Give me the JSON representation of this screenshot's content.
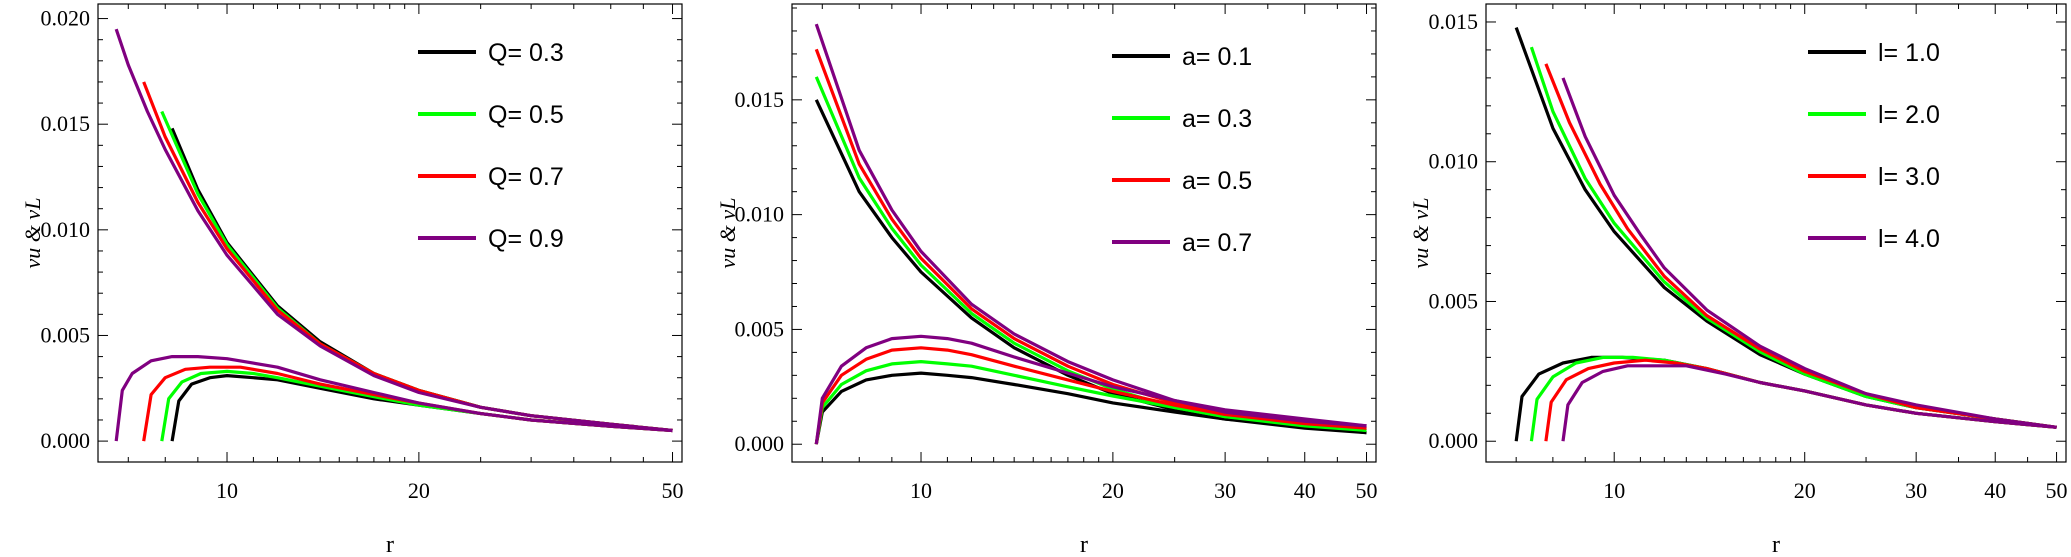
{
  "colors": {
    "c1": "#000000",
    "c2": "#00ff00",
    "c3": "#ff0000",
    "c4": "#800080"
  },
  "chart_data": [
    {
      "type": "line",
      "xlabel": "r",
      "ylabel": "ν_u & ν_L",
      "x_scale": "log",
      "xlim": [
        6.6,
        51
      ],
      "ylim": [
        -0.0008,
        0.0205
      ],
      "xticks": [
        10,
        20,
        50
      ],
      "yticks": [
        0.0,
        0.005,
        0.01,
        0.015,
        0.02
      ],
      "ytick_labels": [
        "0.000",
        "0.005",
        "0.010",
        "0.015",
        "0.020"
      ],
      "legend_position": "top-right",
      "series": [
        {
          "name": "Q= 0.3",
          "color": "#000000",
          "upper": {
            "x": [
              8.2,
              9,
              10,
              12,
              14,
              17,
              20,
              25,
              30,
              40,
              50
            ],
            "y": [
              0.0148,
              0.0119,
              0.0094,
              0.0064,
              0.0047,
              0.0032,
              0.0024,
              0.0016,
              0.0012,
              0.0008,
              0.0005
            ]
          },
          "lower": {
            "x": [
              8.2,
              8.4,
              8.8,
              9.4,
              10,
              11,
              12,
              14,
              17,
              20,
              25,
              30,
              40,
              50
            ],
            "y": [
              0.0,
              0.0019,
              0.0027,
              0.003,
              0.0031,
              0.003,
              0.0029,
              0.0025,
              0.002,
              0.0017,
              0.0013,
              0.001,
              0.0007,
              0.0005
            ]
          }
        },
        {
          "name": "Q= 0.5",
          "color": "#00ff00",
          "upper": {
            "x": [
              7.9,
              9,
              10,
              12,
              14,
              17,
              20,
              25,
              30,
              40,
              50
            ],
            "y": [
              0.0156,
              0.0117,
              0.0093,
              0.0063,
              0.0046,
              0.0032,
              0.0024,
              0.0016,
              0.0012,
              0.0008,
              0.0005
            ]
          },
          "lower": {
            "x": [
              7.9,
              8.1,
              8.5,
              9.1,
              10,
              11,
              12,
              14,
              17,
              20,
              25,
              30,
              40,
              50
            ],
            "y": [
              0.0,
              0.002,
              0.0028,
              0.0032,
              0.0033,
              0.0032,
              0.003,
              0.0026,
              0.0021,
              0.0017,
              0.0013,
              0.001,
              0.0007,
              0.0005
            ]
          }
        },
        {
          "name": "Q= 0.7",
          "color": "#ff0000",
          "upper": {
            "x": [
              7.4,
              8,
              9,
              10,
              12,
              14,
              17,
              20,
              25,
              30,
              40,
              50
            ],
            "y": [
              0.017,
              0.0144,
              0.0113,
              0.0091,
              0.0062,
              0.0046,
              0.0032,
              0.0024,
              0.0016,
              0.0012,
              0.0008,
              0.0005
            ]
          },
          "lower": {
            "x": [
              7.4,
              7.6,
              8,
              8.6,
              9.4,
              10.5,
              12,
              14,
              17,
              20,
              25,
              30,
              40,
              50
            ],
            "y": [
              0.0,
              0.0022,
              0.003,
              0.0034,
              0.0035,
              0.0035,
              0.0032,
              0.0027,
              0.0022,
              0.0018,
              0.0013,
              0.001,
              0.0007,
              0.0005
            ]
          }
        },
        {
          "name": "Q= 0.9",
          "color": "#800080",
          "upper": {
            "x": [
              6.7,
              7,
              7.5,
              8,
              9,
              10,
              12,
              14,
              17,
              20,
              25,
              30,
              40,
              50
            ],
            "y": [
              0.0195,
              0.0178,
              0.0156,
              0.0138,
              0.0109,
              0.0088,
              0.006,
              0.0045,
              0.0031,
              0.0023,
              0.0016,
              0.0012,
              0.0008,
              0.0005
            ]
          },
          "lower": {
            "x": [
              6.7,
              6.85,
              7.1,
              7.6,
              8.2,
              9,
              10,
              12,
              14,
              17,
              20,
              25,
              30,
              40,
              50
            ],
            "y": [
              0.0,
              0.0024,
              0.0032,
              0.0038,
              0.004,
              0.004,
              0.0039,
              0.0035,
              0.0029,
              0.0023,
              0.0018,
              0.0013,
              0.001,
              0.0007,
              0.0005
            ]
          }
        }
      ]
    },
    {
      "type": "line",
      "xlabel": "r",
      "ylabel": "ν_u & ν_L",
      "x_scale": "log",
      "xlim": [
        6.6,
        51
      ],
      "ylim": [
        -0.0006,
        0.019
      ],
      "xticks": [
        10,
        20,
        30,
        40,
        50
      ],
      "yticks": [
        0.0,
        0.005,
        0.01,
        0.015
      ],
      "ytick_labels": [
        "0.000",
        "0.005",
        "0.010",
        "0.015"
      ],
      "legend_position": "top-right",
      "series": [
        {
          "name": "a= 0.1",
          "color": "#000000",
          "upper": {
            "x": [
              6.85,
              8,
              9,
              10,
              12,
              14,
              17,
              20,
              25,
              30,
              40,
              50
            ],
            "y": [
              0.015,
              0.011,
              0.009,
              0.0075,
              0.0055,
              0.0042,
              0.003,
              0.0022,
              0.0015,
              0.0011,
              0.0007,
              0.0005
            ]
          },
          "lower": {
            "x": [
              6.85,
              7,
              7.5,
              8.2,
              9,
              10,
              11,
              12,
              14,
              17,
              20,
              25,
              30,
              40,
              50
            ],
            "y": [
              0.0,
              0.0014,
              0.0023,
              0.0028,
              0.003,
              0.0031,
              0.003,
              0.0029,
              0.0026,
              0.0022,
              0.0018,
              0.0014,
              0.0011,
              0.0008,
              0.0005
            ]
          }
        },
        {
          "name": "a= 0.3",
          "color": "#00ff00",
          "upper": {
            "x": [
              6.85,
              8,
              9,
              10,
              12,
              14,
              17,
              20,
              25,
              30,
              40,
              50
            ],
            "y": [
              0.016,
              0.0116,
              0.0094,
              0.0078,
              0.0057,
              0.0044,
              0.0032,
              0.0024,
              0.0016,
              0.0012,
              0.0008,
              0.0006
            ]
          },
          "lower": {
            "x": [
              6.85,
              7,
              7.5,
              8.2,
              9,
              10,
              11,
              12,
              14,
              17,
              20,
              25,
              30,
              40,
              50
            ],
            "y": [
              0.0,
              0.0016,
              0.0026,
              0.0032,
              0.0035,
              0.0036,
              0.0035,
              0.0034,
              0.003,
              0.0025,
              0.0021,
              0.0016,
              0.0012,
              0.0009,
              0.0006
            ]
          }
        },
        {
          "name": "a= 0.5",
          "color": "#ff0000",
          "upper": {
            "x": [
              6.85,
              8,
              9,
              10,
              12,
              14,
              17,
              20,
              25,
              30,
              40,
              50
            ],
            "y": [
              0.0172,
              0.0122,
              0.0098,
              0.0081,
              0.0059,
              0.0046,
              0.0034,
              0.0026,
              0.0018,
              0.0013,
              0.0009,
              0.0007
            ]
          },
          "lower": {
            "x": [
              6.85,
              7,
              7.5,
              8.2,
              9,
              10,
              11,
              12,
              14,
              17,
              20,
              25,
              30,
              40,
              50
            ],
            "y": [
              0.0,
              0.0018,
              0.003,
              0.0037,
              0.0041,
              0.0042,
              0.0041,
              0.0039,
              0.0034,
              0.0028,
              0.0023,
              0.0017,
              0.0013,
              0.001,
              0.0007
            ]
          }
        },
        {
          "name": "a= 0.7",
          "color": "#800080",
          "upper": {
            "x": [
              6.85,
              8,
              9,
              10,
              12,
              14,
              17,
              20,
              25,
              30,
              40,
              50
            ],
            "y": [
              0.0183,
              0.0128,
              0.0102,
              0.0084,
              0.0061,
              0.0048,
              0.0036,
              0.0028,
              0.0019,
              0.0014,
              0.001,
              0.0008
            ]
          },
          "lower": {
            "x": [
              6.85,
              7,
              7.5,
              8.2,
              9,
              10,
              11,
              12,
              14,
              17,
              20,
              25,
              30,
              40,
              50
            ],
            "y": [
              0.0,
              0.002,
              0.0034,
              0.0042,
              0.0046,
              0.0047,
              0.0046,
              0.0044,
              0.0038,
              0.0031,
              0.0025,
              0.0019,
              0.0015,
              0.0011,
              0.0008
            ]
          }
        }
      ]
    },
    {
      "type": "line",
      "xlabel": "r",
      "ylabel": "ν_u & ν_L",
      "x_scale": "log",
      "xlim": [
        6.6,
        51
      ],
      "ylim": [
        -0.0006,
        0.0155
      ],
      "xticks": [
        10,
        20,
        30,
        40,
        50
      ],
      "yticks": [
        0.0,
        0.005,
        0.01,
        0.015
      ],
      "ytick_labels": [
        "0.000",
        "0.005",
        "0.010",
        "0.015"
      ],
      "legend_position": "top-right",
      "series": [
        {
          "name": "l= 1.0",
          "color": "#000000",
          "upper": {
            "x": [
              7.0,
              8,
              9,
              10,
              12,
              14,
              17,
              20,
              25,
              30,
              40,
              50
            ],
            "y": [
              0.0148,
              0.0112,
              0.009,
              0.0075,
              0.0055,
              0.0043,
              0.0031,
              0.0024,
              0.0016,
              0.0012,
              0.0008,
              0.0005
            ]
          },
          "lower": {
            "x": [
              7.0,
              7.15,
              7.6,
              8.3,
              9.2,
              10.3,
              12,
              14,
              17,
              20,
              25,
              30,
              40,
              50
            ],
            "y": [
              0.0,
              0.0016,
              0.0024,
              0.0028,
              0.003,
              0.003,
              0.0029,
              0.0026,
              0.0021,
              0.0018,
              0.0013,
              0.001,
              0.0007,
              0.0005
            ]
          }
        },
        {
          "name": "l= 2.0",
          "color": "#00ff00",
          "upper": {
            "x": [
              7.4,
              8,
              9,
              10,
              12,
              14,
              17,
              20,
              25,
              30,
              40,
              50
            ],
            "y": [
              0.0141,
              0.0118,
              0.0094,
              0.0078,
              0.0057,
              0.0044,
              0.0032,
              0.0024,
              0.0016,
              0.0012,
              0.0008,
              0.0005
            ]
          },
          "lower": {
            "x": [
              7.4,
              7.55,
              8,
              8.7,
              9.6,
              10.7,
              12,
              14,
              17,
              20,
              25,
              30,
              40,
              50
            ],
            "y": [
              0.0,
              0.0015,
              0.0023,
              0.0028,
              0.003,
              0.003,
              0.0029,
              0.0026,
              0.0021,
              0.0018,
              0.0013,
              0.001,
              0.0007,
              0.0005
            ]
          }
        },
        {
          "name": "l= 3.0",
          "color": "#ff0000",
          "upper": {
            "x": [
              7.8,
              8.5,
              9.5,
              10.5,
              12,
              14,
              17,
              20,
              25,
              30,
              40,
              50
            ],
            "y": [
              0.0135,
              0.0114,
              0.0092,
              0.0076,
              0.0059,
              0.0045,
              0.0033,
              0.0025,
              0.0017,
              0.0012,
              0.0008,
              0.0005
            ]
          },
          "lower": {
            "x": [
              7.8,
              7.95,
              8.4,
              9.1,
              10,
              11.2,
              12.5,
              14,
              17,
              20,
              25,
              30,
              40,
              50
            ],
            "y": [
              0.0,
              0.0014,
              0.0022,
              0.0026,
              0.0028,
              0.0029,
              0.0028,
              0.0026,
              0.0021,
              0.0018,
              0.0013,
              0.001,
              0.0007,
              0.0005
            ]
          }
        },
        {
          "name": "l= 4.0",
          "color": "#800080",
          "upper": {
            "x": [
              8.3,
              9,
              10,
              11,
              12,
              14,
              17,
              20,
              25,
              30,
              40,
              50
            ],
            "y": [
              0.013,
              0.0109,
              0.0088,
              0.0074,
              0.0062,
              0.0047,
              0.0034,
              0.0026,
              0.0017,
              0.0013,
              0.0008,
              0.0005
            ]
          },
          "lower": {
            "x": [
              8.3,
              8.45,
              8.9,
              9.6,
              10.5,
              11.7,
              13,
              15,
              17,
              20,
              25,
              30,
              40,
              50
            ],
            "y": [
              0.0,
              0.0013,
              0.0021,
              0.0025,
              0.0027,
              0.0027,
              0.0027,
              0.0024,
              0.0021,
              0.0018,
              0.0013,
              0.001,
              0.0007,
              0.0005
            ]
          }
        }
      ]
    }
  ]
}
